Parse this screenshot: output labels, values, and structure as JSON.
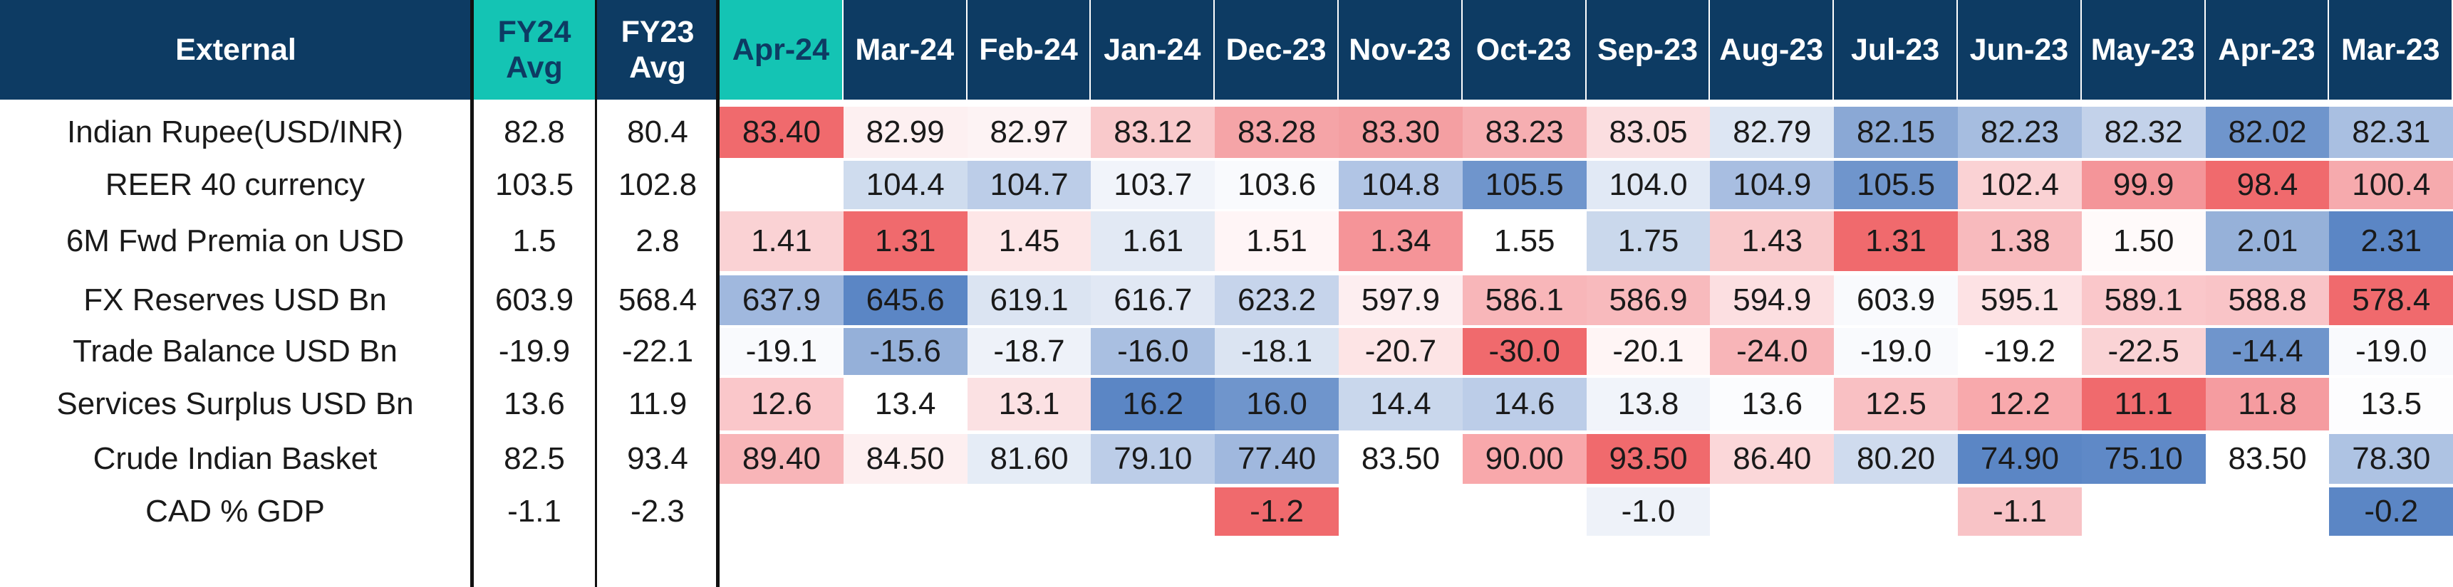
{
  "header": {
    "title": "External",
    "fy24": [
      "FY24",
      "Avg"
    ],
    "fy23": [
      "FY23",
      "Avg"
    ],
    "months": [
      "Apr-24",
      "Mar-24",
      "Feb-24",
      "Jan-24",
      "Dec-23",
      "Nov-23",
      "Oct-23",
      "Sep-23",
      "Aug-23",
      "Jul-23",
      "Jun-23",
      "May-23",
      "Apr-23",
      "Mar-23"
    ]
  },
  "colors": {
    "header_bg": "#0d3b63",
    "header_highlight": "#14c4b4",
    "scale_low_red": "#f06a6d",
    "scale_mid": "#ffffff",
    "scale_high_blue": "#5b86c5"
  },
  "rows": [
    {
      "label": "Indian Rupee(USD/INR)",
      "fy24": "82.8",
      "fy23": "80.4",
      "values": [
        "83.40",
        "82.99",
        "82.97",
        "83.12",
        "83.28",
        "83.30",
        "83.23",
        "83.05",
        "82.79",
        "82.15",
        "82.23",
        "82.32",
        "82.02",
        "82.31"
      ],
      "colors": [
        "#f06a6d",
        "#fdf0f1",
        "#fdf3f4",
        "#f9c9cb",
        "#f5a4a7",
        "#f49fa2",
        "#f6aeb1",
        "#fbdee0",
        "#dde6f3",
        "#8aa8d5",
        "#a6bde0",
        "#c3d2ea",
        "#6f95cc",
        "#a9bfe1"
      ]
    },
    {
      "label": "REER 40 currency",
      "fy24": "103.5",
      "fy23": "102.8",
      "values": [
        "",
        "104.4",
        "104.7",
        "103.7",
        "103.6",
        "104.8",
        "105.5",
        "104.0",
        "104.9",
        "105.5",
        "102.4",
        "99.9",
        "98.4",
        "100.4"
      ],
      "colors": [
        "#ffffff",
        "#cfdcee",
        "#bccde8",
        "#f1f4fa",
        "#f9fafd",
        "#b1c5e5",
        "#6f95cc",
        "#e1e9f5",
        "#a8bee1",
        "#6f95cc",
        "#fad2d4",
        "#f49599",
        "#f06a6d",
        "#f6aaad"
      ]
    },
    {
      "label": "6M Fwd Premia on USD",
      "fy24": "1.5",
      "fy23": "2.8",
      "values": [
        "1.41",
        "1.31",
        "1.45",
        "1.61",
        "1.51",
        "1.34",
        "1.55",
        "1.75",
        "1.43",
        "1.31",
        "1.38",
        "1.50",
        "2.01",
        "2.31"
      ],
      "colors": [
        "#fad2d4",
        "#f06a6d",
        "#fde6e7",
        "#e2e9f4",
        "#fff5f6",
        "#f59498",
        "#ffffff",
        "#cad8ec",
        "#f9c9cb",
        "#f06a6d",
        "#f8babd",
        "#fffafa",
        "#96b1d9",
        "#5b86c5"
      ]
    },
    {
      "label": "FX Reserves USD Bn",
      "fy24": "603.9",
      "fy23": "568.4",
      "values": [
        "637.9",
        "645.6",
        "619.1",
        "616.7",
        "623.2",
        "597.9",
        "586.1",
        "586.9",
        "594.9",
        "603.9",
        "595.1",
        "589.1",
        "588.8",
        "578.4"
      ],
      "colors": [
        "#a0b8de",
        "#5b86c5",
        "#dbe4f2",
        "#e1e8f4",
        "#c6d4eb",
        "#fdeef0",
        "#f8b6b9",
        "#f8babd",
        "#fcdfe1",
        "#f9fafd",
        "#fde2e4",
        "#fac7ca",
        "#f9c4c7",
        "#f06a6d"
      ]
    },
    {
      "label": "Trade Balance USD Bn",
      "fy24": "-19.9",
      "fy23": "-22.1",
      "values": [
        "-19.1",
        "-15.6",
        "-18.7",
        "-16.0",
        "-18.1",
        "-20.7",
        "-30.0",
        "-20.1",
        "-24.0",
        "-19.0",
        "-19.2",
        "-22.5",
        "-14.4",
        "-19.0"
      ],
      "colors": [
        "#f9fafd",
        "#95b0d9",
        "#eef2f9",
        "#a9bfe1",
        "#dbe4f2",
        "#fde4e5",
        "#f06a6d",
        "#fff5f5",
        "#f8b5b8",
        "#f9fafd",
        "#ffffff",
        "#fad3d5",
        "#6f95cc",
        "#f9fafd"
      ]
    },
    {
      "label": "Services Surplus USD Bn",
      "fy24": "13.6",
      "fy23": "11.9",
      "values": [
        "12.6",
        "13.4",
        "13.1",
        "16.2",
        "16.0",
        "14.4",
        "14.6",
        "13.8",
        "13.6",
        "12.5",
        "12.2",
        "11.1",
        "11.8",
        "13.5"
      ],
      "colors": [
        "#fac7ca",
        "#ffffff",
        "#fbe1e3",
        "#5b86c5",
        "#6f95cc",
        "#c9d7ec",
        "#bccde8",
        "#f1f4fa",
        "#fbfcfe",
        "#f9c0c3",
        "#f8a9ac",
        "#f06a6d",
        "#f59ca0",
        "#fdfdfe"
      ]
    },
    {
      "label": "Crude Indian Basket",
      "fy24": "82.5",
      "fy23": "93.4",
      "values": [
        "89.40",
        "84.50",
        "81.60",
        "79.10",
        "77.40",
        "83.50",
        "90.00",
        "93.50",
        "86.40",
        "80.20",
        "74.90",
        "75.10",
        "83.50",
        "78.30"
      ],
      "colors": [
        "#f8b5b8",
        "#fdeff0",
        "#e5ecf6",
        "#bccde8",
        "#a0b8de",
        "#ffffff",
        "#f8a8ab",
        "#f06a6d",
        "#fbd7d9",
        "#cfdbee",
        "#5b86c5",
        "#5f89c7",
        "#ffffff",
        "#aec3e3"
      ]
    },
    {
      "label": "CAD % GDP",
      "fy24": "-1.1",
      "fy23": "-2.3",
      "values": [
        "",
        "",
        "",
        "",
        "-1.2",
        "",
        "",
        "-1.0",
        "",
        "",
        "-1.1",
        "",
        "",
        "-0.2"
      ],
      "colors": [
        "#ffffff",
        "#ffffff",
        "#ffffff",
        "#ffffff",
        "#f06a6d",
        "#ffffff",
        "#ffffff",
        "#eef2f9",
        "#ffffff",
        "#ffffff",
        "#f8c3c6",
        "#ffffff",
        "#ffffff",
        "#5b86c5"
      ]
    }
  ]
}
